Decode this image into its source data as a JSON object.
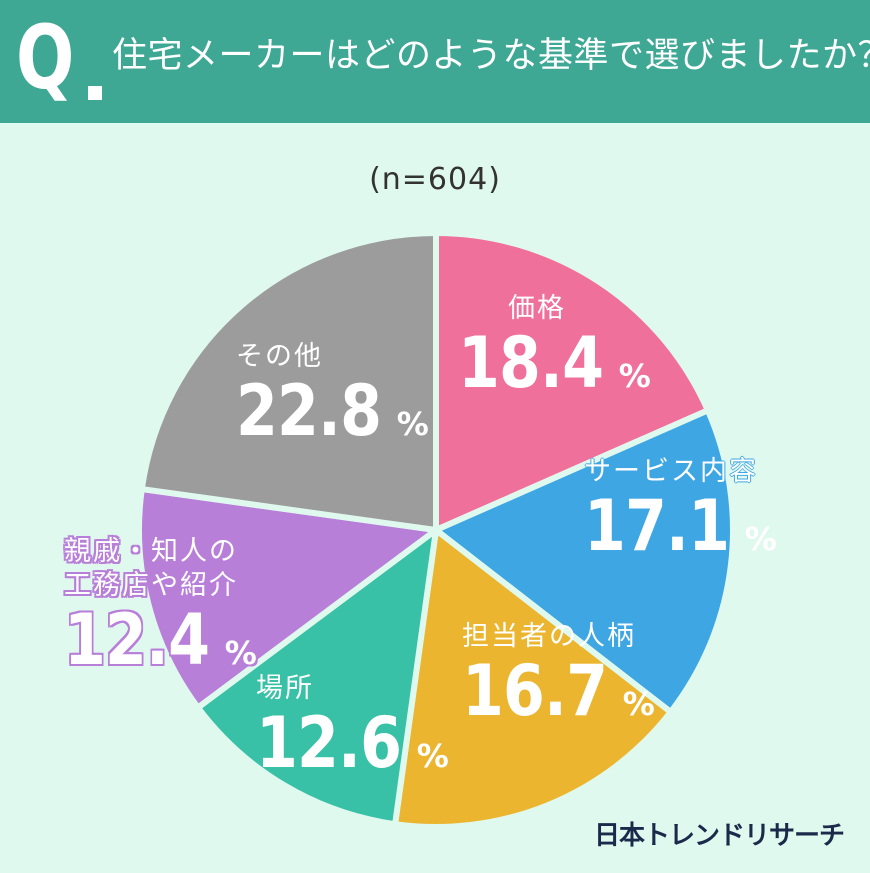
{
  "header": {
    "q_mark": "Q",
    "title": "住宅メーカーはどのような基準で選びましたか？"
  },
  "sample_size": "(n=604)",
  "brand": "日本トレンドリサーチ",
  "colors": {
    "header_bg": "#3ea895",
    "page_bg": "#e0f9ee",
    "separator": "#e0f9ee"
  },
  "chart_data": {
    "type": "pie",
    "title": "住宅メーカーはどのような基準で選びましたか？",
    "subtitle": "(n=604)",
    "start_angle": "12 o'clock",
    "direction": "clockwise",
    "unit": "%",
    "categories": [
      "価格",
      "サービス内容",
      "担当者の人柄",
      "場所",
      "親戚・知人の工務店や紹介",
      "その他"
    ],
    "values": [
      18.4,
      17.1,
      16.7,
      12.6,
      12.4,
      22.8
    ],
    "colors": [
      "#f0709c",
      "#3fa6e4",
      "#ecb530",
      "#38c1a6",
      "#b87fd9",
      "#9c9c9c"
    ],
    "slices": [
      {
        "label": "価格",
        "name_lines": [
          "価格"
        ],
        "value": "18.4",
        "unit": "%",
        "color": "#f0709c"
      },
      {
        "label": "サービス内容",
        "name_lines": [
          "サービス内容"
        ],
        "value": "17.1",
        "unit": "%",
        "color": "#3fa6e4"
      },
      {
        "label": "担当者の人柄",
        "name_lines": [
          "担当者の人柄"
        ],
        "value": "16.7",
        "unit": "%",
        "color": "#ecb530"
      },
      {
        "label": "場所",
        "name_lines": [
          "場所"
        ],
        "value": "12.6",
        "unit": "%",
        "color": "#38c1a6"
      },
      {
        "label": "親戚・知人の工務店や紹介",
        "name_lines": [
          "親戚・知人の",
          "工務店や紹介"
        ],
        "value": "12.4",
        "unit": "%",
        "color": "#b87fd9"
      },
      {
        "label": "その他",
        "name_lines": [
          "その他"
        ],
        "value": "22.8",
        "unit": "%",
        "color": "#9c9c9c"
      }
    ],
    "legend": "none (labels inside slices)"
  }
}
